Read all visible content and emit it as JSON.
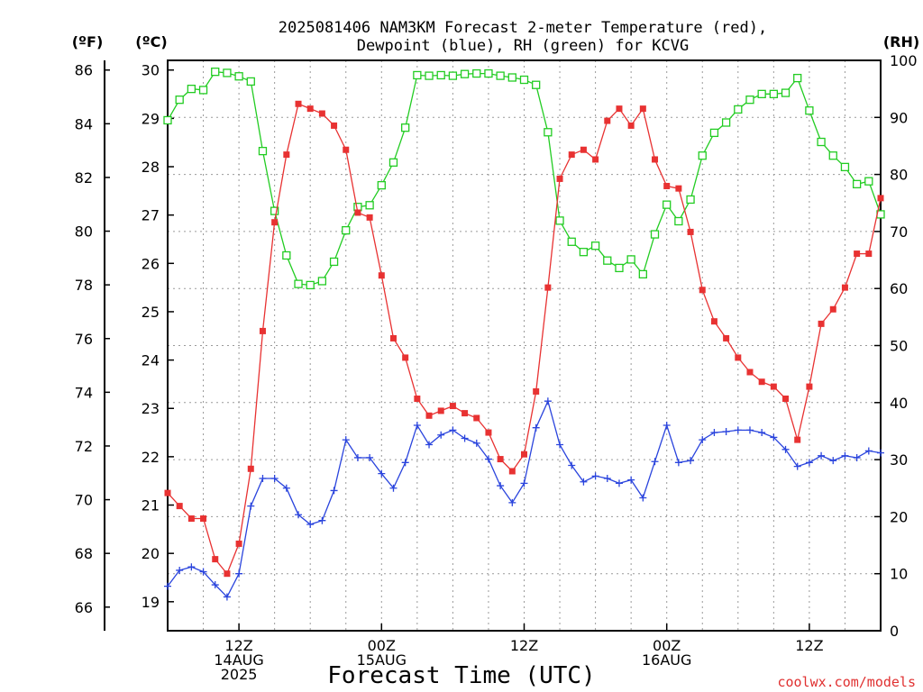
{
  "title": {
    "line1": "2025081406 NAM3KM Forecast 2-meter Temperature (red),",
    "line2": "Dewpoint (blue), RH (green) for KCVG"
  },
  "axis_units": {
    "fahrenheit": "(ºF)",
    "celsius": "(ºC)",
    "rh": "(RH)"
  },
  "x_axis_title": "Forecast Time (UTC)",
  "credit": "coolwx.com/models",
  "colors": {
    "temperature": "#e83232",
    "dewpoint": "#2a44dd",
    "rh": "#22cc22",
    "axis": "#000000"
  },
  "chart_data": {
    "type": "line",
    "title": "2025081406 NAM3KM Forecast 2-meter Temperature (red), Dewpoint (blue), RH (green) for KCVG",
    "xlabel": "Forecast Time (UTC)",
    "x_unit": "forecast hour",
    "x_range": [
      0,
      60
    ],
    "x_ticks": [
      {
        "hour": 6,
        "lines": [
          "12Z",
          "14AUG",
          "2025"
        ]
      },
      {
        "hour": 18,
        "lines": [
          "00Z",
          "15AUG"
        ]
      },
      {
        "hour": 30,
        "lines": [
          "12Z"
        ]
      },
      {
        "hour": 42,
        "lines": [
          "00Z",
          "16AUG"
        ]
      },
      {
        "hour": 54,
        "lines": [
          "12Z"
        ]
      }
    ],
    "y_celsius": {
      "range": [
        18.4,
        30.2
      ],
      "ticks": [
        19,
        20,
        21,
        22,
        23,
        24,
        25,
        26,
        27,
        28,
        29,
        30
      ]
    },
    "y_fahrenheit": {
      "ticks": [
        66,
        68,
        70,
        72,
        74,
        76,
        78,
        80,
        82,
        84,
        86
      ]
    },
    "y_rh": {
      "range": [
        0,
        100
      ],
      "ticks": [
        0,
        10,
        20,
        30,
        40,
        50,
        60,
        70,
        80,
        90,
        100
      ]
    },
    "grid": true,
    "series": [
      {
        "name": "Temperature",
        "unit": "C",
        "values": [
          21.25,
          20.98,
          20.72,
          20.72,
          19.88,
          19.58,
          20.2,
          21.75,
          24.6,
          26.85,
          28.25,
          29.3,
          29.2,
          29.1,
          28.85,
          28.35,
          27.05,
          26.95,
          25.75,
          24.45,
          24.05,
          23.2,
          22.85,
          22.95,
          23.05,
          22.9,
          22.8,
          22.5,
          21.95,
          21.7,
          22.05,
          23.35,
          25.5,
          27.75,
          28.25,
          28.35,
          28.15,
          28.95,
          29.2,
          28.85,
          29.2,
          28.15,
          27.6,
          27.55,
          26.65,
          25.45,
          24.8,
          24.45,
          24.05,
          23.75,
          23.55,
          23.45,
          23.2,
          22.35,
          23.45,
          24.75,
          25.05,
          25.5,
          26.2,
          26.2,
          27.35
        ]
      },
      {
        "name": "Dewpoint",
        "unit": "C",
        "values": [
          19.32,
          19.65,
          19.72,
          19.62,
          19.35,
          19.1,
          19.58,
          20.98,
          21.55,
          21.55,
          21.35,
          20.8,
          20.6,
          20.68,
          21.3,
          22.35,
          21.98,
          21.98,
          21.65,
          21.35,
          21.88,
          22.65,
          22.25,
          22.45,
          22.55,
          22.38,
          22.28,
          21.95,
          21.4,
          21.05,
          21.45,
          22.6,
          23.15,
          22.25,
          21.82,
          21.48,
          21.6,
          21.55,
          21.45,
          21.52,
          21.15,
          21.9,
          22.65,
          21.88,
          21.92,
          22.35,
          22.5,
          22.52,
          22.55,
          22.55,
          22.5,
          22.4,
          22.15,
          21.8,
          21.88,
          22.02,
          21.92,
          22.02,
          21.98,
          22.12,
          22.08
        ]
      },
      {
        "name": "RH",
        "unit": "%",
        "values": [
          89.5,
          93.1,
          95.0,
          94.8,
          98.0,
          97.8,
          97.2,
          96.3,
          84.1,
          73.6,
          65.8,
          60.8,
          60.6,
          61.3,
          64.7,
          70.2,
          74.3,
          74.6,
          78.1,
          82.1,
          88.2,
          97.4,
          97.3,
          97.4,
          97.3,
          97.6,
          97.7,
          97.7,
          97.3,
          97.0,
          96.6,
          95.7,
          87.4,
          71.9,
          68.2,
          66.4,
          67.5,
          64.9,
          63.6,
          65.1,
          62.5,
          69.5,
          74.7,
          71.8,
          75.6,
          83.3,
          87.3,
          89.1,
          91.4,
          93.1,
          94.1,
          94.1,
          94.3,
          96.9,
          91.2,
          85.7,
          83.3,
          81.3,
          78.3,
          78.8,
          73.0
        ]
      }
    ]
  }
}
